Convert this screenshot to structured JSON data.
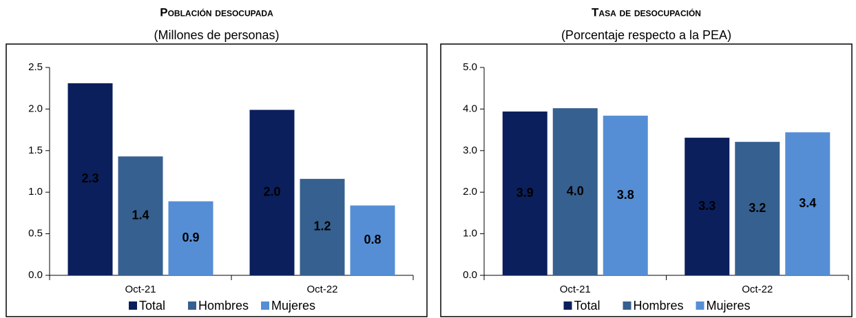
{
  "chart_data": [
    {
      "type": "bar",
      "title": "Población desocupada",
      "subtitle": "(Millones de personas)",
      "categories": [
        "Oct-21",
        "Oct-22"
      ],
      "series": [
        {
          "name": "Total",
          "color": "#0b1f5c",
          "values": [
            2.31,
            1.99
          ],
          "value_labels": [
            "2.3",
            "2.0"
          ]
        },
        {
          "name": "Hombres",
          "color": "#36608f",
          "values": [
            1.43,
            1.16
          ],
          "value_labels": [
            "1.4",
            "1.2"
          ]
        },
        {
          "name": "Mujeres",
          "color": "#558ed5",
          "values": [
            0.89,
            0.84
          ],
          "value_labels": [
            "0.9",
            "0.8"
          ]
        }
      ],
      "ylim": [
        0,
        2.5
      ],
      "yticks": [
        {
          "value": 0,
          "label": "0.0"
        },
        0.5,
        {
          "value": 1,
          "label": "1.0"
        },
        1.5,
        {
          "value": 2,
          "label": "2.0"
        },
        2.5
      ],
      "grid": false,
      "legend": "bottom"
    },
    {
      "type": "bar",
      "title": "Tasa de desocupación",
      "subtitle": "(Porcentaje respecto a la PEA)",
      "categories": [
        "Oct-21",
        "Oct-22"
      ],
      "series": [
        {
          "name": "Total",
          "color": "#0b1f5c",
          "values": [
            3.94,
            3.31
          ],
          "value_labels": [
            "3.9",
            "3.3"
          ]
        },
        {
          "name": "Hombres",
          "color": "#36608f",
          "values": [
            4.02,
            3.21
          ],
          "value_labels": [
            "4.0",
            "3.2"
          ]
        },
        {
          "name": "Mujeres",
          "color": "#558ed5",
          "values": [
            3.84,
            3.44
          ],
          "value_labels": [
            "3.8",
            "3.4"
          ]
        }
      ],
      "ylim": [
        0,
        5
      ],
      "yticks": [
        {
          "value": 0,
          "label": "0.0"
        },
        {
          "value": 1,
          "label": "1.0"
        },
        {
          "value": 2,
          "label": "2.0"
        },
        {
          "value": 3,
          "label": "3.0"
        },
        {
          "value": 4,
          "label": "4.0"
        },
        {
          "value": 5,
          "label": "5.0"
        }
      ],
      "grid": false,
      "legend": "bottom"
    }
  ]
}
